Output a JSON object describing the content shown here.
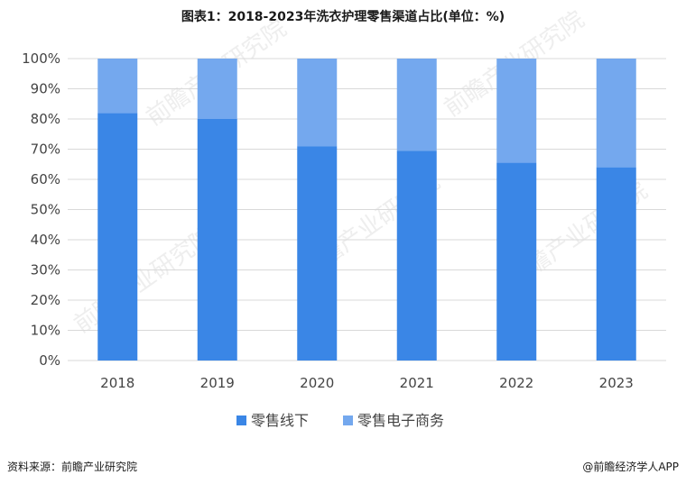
{
  "title": "图表1：2018-2023年洗衣护理零售渠道占比(单位：%)",
  "footer": {
    "source": "资料来源：前瞻产业研究院",
    "brand": "@前瞻经济学人APP"
  },
  "watermark": "前瞻产业研究院",
  "colors": {
    "offline": "#3A86E6",
    "ecommerce": "#74A8EE",
    "grid": "#D9D9D9"
  },
  "chart_data": {
    "type": "bar",
    "stacked": true,
    "title": "图表1：2018-2023年洗衣护理零售渠道占比(单位：%)",
    "categories": [
      "2018",
      "2019",
      "2020",
      "2021",
      "2022",
      "2023"
    ],
    "series": [
      {
        "name": "零售线下",
        "values": [
          82,
          80,
          71,
          69.5,
          65.5,
          64
        ]
      },
      {
        "name": "零售电子商务",
        "values": [
          18,
          20,
          29,
          30.5,
          34.5,
          36
        ]
      }
    ],
    "yticks": [
      "0%",
      "10%",
      "20%",
      "30%",
      "40%",
      "50%",
      "60%",
      "70%",
      "80%",
      "90%",
      "100%"
    ],
    "ylim": [
      0,
      100
    ],
    "grid": true,
    "legend_position": "bottom"
  }
}
